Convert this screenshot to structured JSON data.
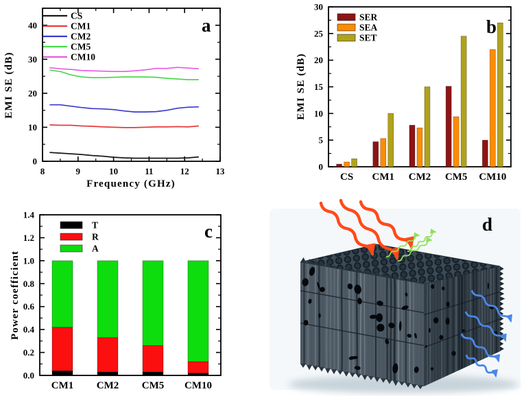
{
  "figure": {
    "background": "#ffffff"
  },
  "chart_data": [
    {
      "id": "a",
      "panel_label": "a",
      "type": "line",
      "title": "",
      "xlabel": "Frequency (GHz)",
      "ylabel": "EMI SE (dB)",
      "xlim": [
        8,
        13
      ],
      "ylim": [
        0,
        45
      ],
      "xticks": [
        "8",
        "9",
        "10",
        "11",
        "12",
        "13"
      ],
      "yticks": [
        "0",
        "10",
        "20",
        "30",
        "40"
      ],
      "legend_position": "top-left",
      "grid": false,
      "x": [
        8.2,
        8.5,
        8.8,
        9.1,
        9.4,
        9.7,
        10.0,
        10.3,
        10.6,
        10.9,
        11.2,
        11.5,
        11.8,
        12.1,
        12.4
      ],
      "series": [
        {
          "name": "CS",
          "color": "#1a1a1a",
          "values": [
            2.6,
            2.4,
            2.2,
            2.0,
            1.7,
            1.5,
            1.2,
            1.0,
            0.9,
            0.9,
            0.9,
            0.9,
            0.9,
            1.0,
            1.3
          ]
        },
        {
          "name": "CM1",
          "color": "#e83a3a",
          "values": [
            10.7,
            10.6,
            10.6,
            10.4,
            10.3,
            10.1,
            10.0,
            9.9,
            9.9,
            10.0,
            10.1,
            10.1,
            10.2,
            10.1,
            10.4
          ]
        },
        {
          "name": "CM2",
          "color": "#3a3ad0",
          "values": [
            16.6,
            16.6,
            16.2,
            15.8,
            15.5,
            15.4,
            15.2,
            14.8,
            14.5,
            14.5,
            14.6,
            15.0,
            15.6,
            15.9,
            16.0
          ]
        },
        {
          "name": "CM5",
          "color": "#4cd94c",
          "values": [
            26.8,
            26.4,
            25.4,
            24.8,
            24.6,
            24.6,
            24.7,
            24.8,
            24.8,
            24.8,
            24.7,
            24.4,
            24.2,
            24.0,
            24.0
          ]
        },
        {
          "name": "CM10",
          "color": "#ea5ae2",
          "values": [
            27.5,
            27.2,
            27.0,
            26.7,
            26.6,
            26.5,
            26.4,
            26.4,
            26.6,
            26.9,
            27.3,
            27.3,
            27.6,
            27.4,
            27.2
          ]
        }
      ]
    },
    {
      "id": "b",
      "panel_label": "b",
      "type": "bar",
      "title": "",
      "xlabel": "",
      "ylabel": "EMI SE (dB)",
      "ylim": [
        0,
        30
      ],
      "yticks": [
        "0",
        "5",
        "10",
        "15",
        "20",
        "25",
        "30"
      ],
      "legend_position": "top-left",
      "grid": false,
      "categories": [
        "CS",
        "CM1",
        "CM2",
        "CM5",
        "CM10"
      ],
      "series": [
        {
          "name": "SER",
          "color": "#8e1414",
          "values": [
            0.5,
            4.7,
            7.8,
            15.1,
            5.0
          ]
        },
        {
          "name": "SEA",
          "color": "#ff8c00",
          "values": [
            0.9,
            5.3,
            7.3,
            9.4,
            22.0
          ]
        },
        {
          "name": "SET",
          "color": "#b1a21b",
          "values": [
            1.5,
            10.0,
            15.0,
            24.5,
            27.0
          ]
        }
      ]
    },
    {
      "id": "c",
      "panel_label": "c",
      "type": "bar-stacked",
      "title": "",
      "xlabel": "",
      "ylabel": "Power coefficient",
      "ylim": [
        0,
        1.4
      ],
      "yticks": [
        "0.0",
        "0.2",
        "0.4",
        "0.6",
        "0.8",
        "1.0",
        "1.2",
        "1.4"
      ],
      "legend_position": "top-left",
      "grid": false,
      "categories": [
        "CM1",
        "CM2",
        "CM5",
        "CM10"
      ],
      "series": [
        {
          "name": "T",
          "color": "#000000",
          "values": [
            0.04,
            0.03,
            0.03,
            0.02
          ]
        },
        {
          "name": "R",
          "color": "#fb0f0f",
          "values": [
            0.38,
            0.3,
            0.23,
            0.1
          ]
        },
        {
          "name": "A",
          "color": "#0ddd0d",
          "values": [
            0.58,
            0.67,
            0.74,
            0.88
          ]
        }
      ]
    }
  ],
  "illustration": {
    "label": "d",
    "background": "#f4f8fa",
    "block_colors": {
      "top": "#3c4a56",
      "front": "#4d5a64",
      "side": "#2e3942",
      "pores": "#06090c"
    },
    "incident_color": "#ff4a1a",
    "reflected_color": "#90e05a",
    "transmitted_color": "#4a86e8"
  }
}
